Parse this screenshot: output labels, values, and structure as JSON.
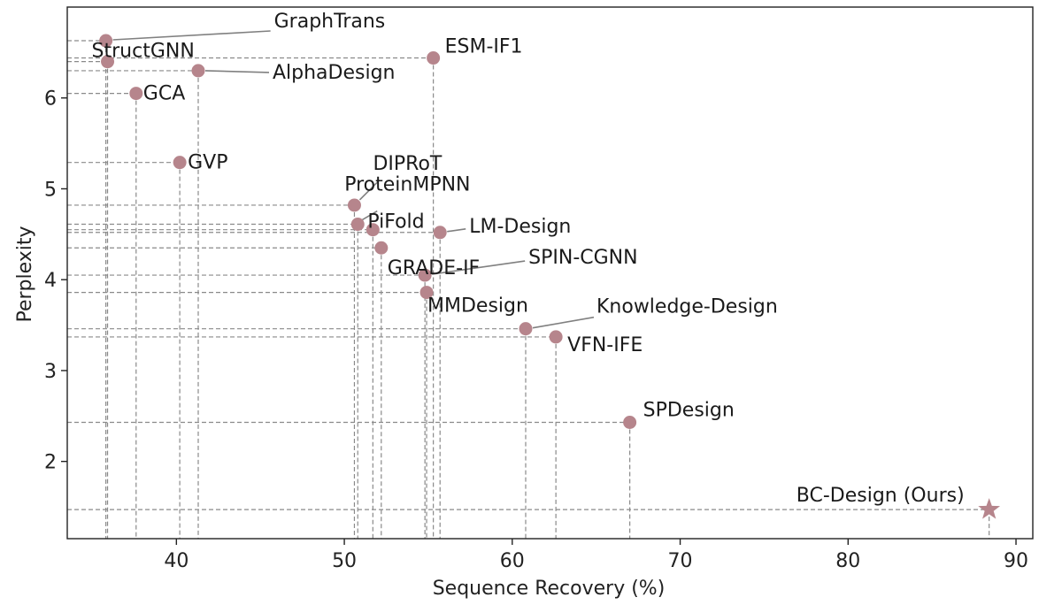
{
  "chart_data": {
    "type": "scatter",
    "title": "",
    "xlabel": "Sequence Recovery (%)",
    "ylabel": "Perplexity",
    "xlim": [
      33.5,
      91.0
    ],
    "ylim": [
      1.15,
      7.0
    ],
    "xticks": [
      40,
      50,
      60,
      70,
      80,
      90
    ],
    "yticks": [
      2,
      3,
      4,
      5,
      6
    ],
    "grid": false,
    "marker_color": "#b6858c",
    "points": [
      {
        "name": "GraphTrans",
        "x": 35.8,
        "y": 6.63,
        "marker": "circle"
      },
      {
        "name": "StructGNN",
        "x": 35.9,
        "y": 6.4,
        "marker": "circle"
      },
      {
        "name": "ESM-IF1",
        "x": 55.3,
        "y": 6.44,
        "marker": "circle"
      },
      {
        "name": "AlphaDesign",
        "x": 41.3,
        "y": 6.3,
        "marker": "circle"
      },
      {
        "name": "GCA",
        "x": 37.6,
        "y": 6.05,
        "marker": "circle"
      },
      {
        "name": "GVP",
        "x": 40.2,
        "y": 5.29,
        "marker": "circle"
      },
      {
        "name": "DIPRoT",
        "x": 50.6,
        "y": 4.82,
        "marker": "circle"
      },
      {
        "name": "ProteinMPNN",
        "x": 50.8,
        "y": 4.61,
        "marker": "circle"
      },
      {
        "name": "PiFold",
        "x": 51.7,
        "y": 4.55,
        "marker": "circle"
      },
      {
        "name": "LM-Design",
        "x": 55.7,
        "y": 4.52,
        "marker": "circle"
      },
      {
        "name": "GRADE-IF",
        "x": 52.2,
        "y": 4.35,
        "marker": "circle"
      },
      {
        "name": "SPIN-CGNN",
        "x": 54.8,
        "y": 4.05,
        "marker": "circle"
      },
      {
        "name": "MMDesign",
        "x": 54.9,
        "y": 3.86,
        "marker": "circle"
      },
      {
        "name": "Knowledge-Design",
        "x": 60.8,
        "y": 3.46,
        "marker": "circle"
      },
      {
        "name": "VFN-IFE",
        "x": 62.6,
        "y": 3.37,
        "marker": "circle"
      },
      {
        "name": "SPDesign",
        "x": 67.0,
        "y": 2.43,
        "marker": "circle"
      },
      {
        "name": "BC-Design (Ours)",
        "x": 88.4,
        "y": 1.47,
        "marker": "star"
      }
    ]
  }
}
